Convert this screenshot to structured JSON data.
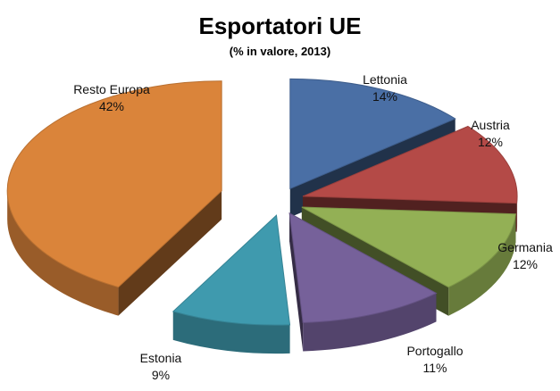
{
  "chart_data": {
    "type": "pie",
    "title": "Esportatori UE",
    "subtitle": "(% in valore, 2013)",
    "slices": [
      {
        "label": "Lettonia",
        "value": 14,
        "value_label": "14%",
        "color": "#4A6FA5"
      },
      {
        "label": "Austria",
        "value": 12,
        "value_label": "12%",
        "color": "#B44A47"
      },
      {
        "label": "Germania",
        "value": 12,
        "value_label": "12%",
        "color": "#93B055"
      },
      {
        "label": "Portogallo",
        "value": 11,
        "value_label": "11%",
        "color": "#76619A"
      },
      {
        "label": "Estonia",
        "value": 9,
        "value_label": "9%",
        "color": "#3F9AAE"
      },
      {
        "label": "Resto Europa",
        "value": 42,
        "value_label": "42%",
        "color": "#DA843A"
      }
    ],
    "style": "3d-exploded"
  }
}
